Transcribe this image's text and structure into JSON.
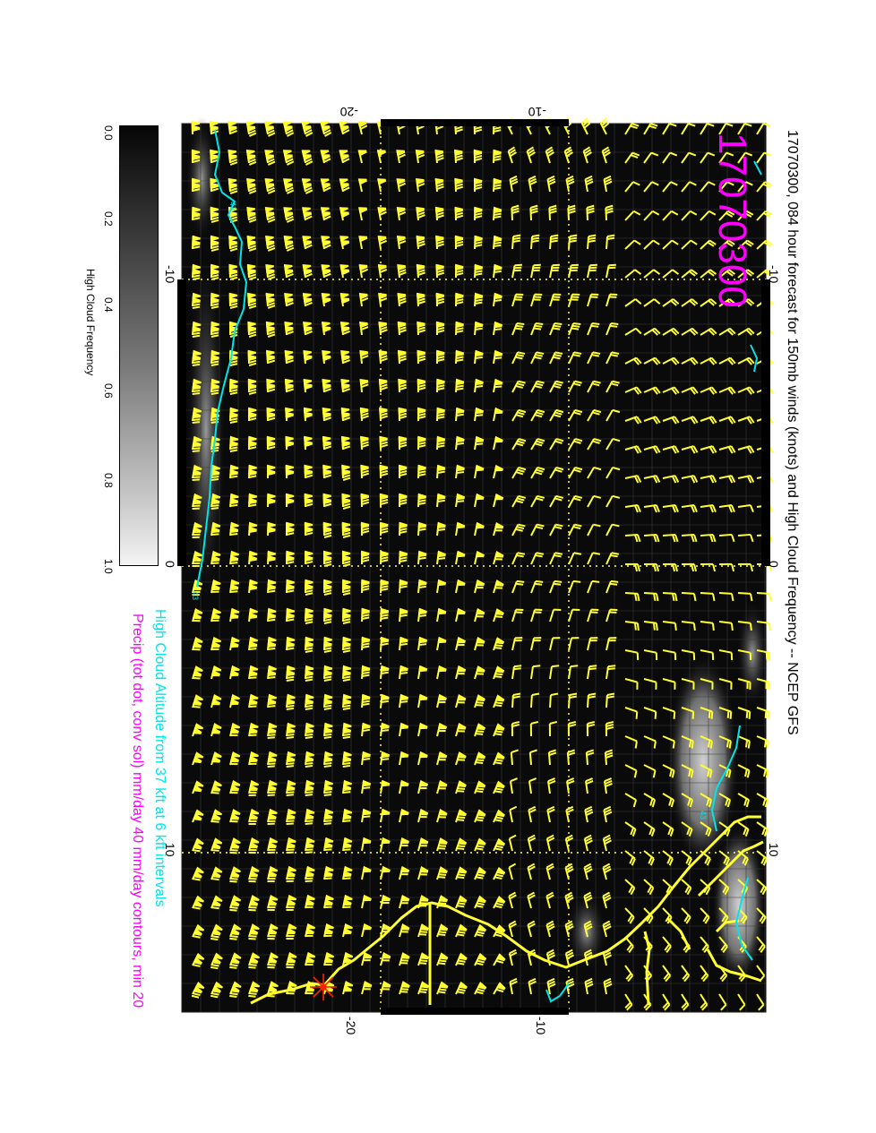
{
  "title": "17070300, 084 hour forecast for 150mb winds (knots) and High Cloud Frequency -- NCEP GFS",
  "date_stamp": "17070300",
  "legend_lines": [
    "High Cloud Altitude from 37 kft at 6 kft intervals",
    "Precip (tot dot, conv sol) mm/day 40 mm/day contours, min 20"
  ],
  "colorbar": {
    "label": "High Cloud Frequency",
    "ticks": [
      "0.0",
      "0.2",
      "0.4",
      "0.6",
      "0.8",
      "1.0"
    ],
    "range": [
      0.0,
      1.0
    ],
    "colormap": "black-to-white"
  },
  "axes": {
    "top_labels": [
      "-20",
      "-10"
    ],
    "bottom_labels": [
      "-20",
      "-10"
    ],
    "left_labels": [
      "-10",
      "0",
      "10"
    ],
    "right_labels": [
      "-10",
      "0",
      "10"
    ]
  },
  "contour_labels": [
    "43",
    "43",
    "43"
  ],
  "marker": "star",
  "colors": {
    "background": "#0a0a0a",
    "wind_barbs": "#ffff33",
    "coastline": "#ffff33",
    "gridlines": "#ffff33",
    "cloud_altitude_contour": "#00e5e5",
    "precip_title": "#ff00ff",
    "date_stamp": "#ff00ff",
    "marker": "#ff2200"
  }
}
